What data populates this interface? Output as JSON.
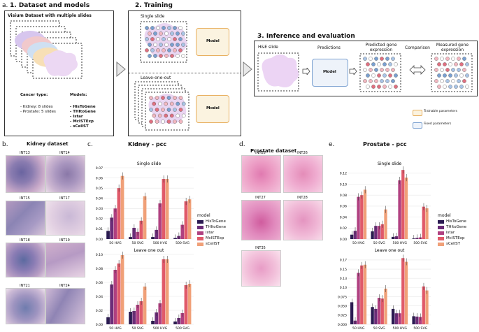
{
  "section_a": {
    "letter": "a.",
    "title": "1. Dataset and models",
    "box_title": "Visium Dataset with multiple slides",
    "cancer_type_label": "Cancer type:",
    "cancer_types": [
      "- Kidney: 8 slides",
      "- Prostate: 5 slides"
    ],
    "models_label": "Models:",
    "models": [
      "- HisToGene",
      "- THItoGene",
      "- Istar",
      "- McISTExp",
      "- sCellST"
    ]
  },
  "section_2": {
    "title": "2. Training",
    "single_slide": "Single slide",
    "leave_one_out": "Leave-one-out",
    "model_label_1": "Model",
    "model_label_2": "Model"
  },
  "section_3": {
    "title": "3. Inference and evaluation",
    "he_slide": "H&E slide",
    "predictions": "Predictions",
    "predicted_expr": "Predicted gene expression",
    "comparison": "Comparison",
    "measured_expr": "Measured gene expression",
    "model_label": "Model",
    "legend_trainable": "Trainable parameters",
    "legend_fixed": "Fixed parameters",
    "color_trainable": "#e8b060",
    "color_fixed": "#7aa0d0"
  },
  "section_b": {
    "letter": "b.",
    "title": "Kidney dataset",
    "slides": [
      "INT13",
      "INT14",
      "INT15",
      "INT17",
      "INT18",
      "INT19",
      "INT21",
      "INT24"
    ]
  },
  "section_d": {
    "letter": "d.",
    "title": "Prostate dataset",
    "slides": [
      "INT25",
      "INT26",
      "INT27",
      "INT28",
      "INT35"
    ]
  },
  "section_c": {
    "letter": "c.",
    "title": "Kidney - pcc"
  },
  "section_e": {
    "letter": "e.",
    "title": "Prostate - pcc"
  },
  "chart_data": [
    {
      "id": "kidney-single",
      "type": "bar",
      "title": "Single slide",
      "categories": [
        "50 HVG",
        "50 SVG",
        "500 HVG",
        "500 SVG"
      ],
      "ylim": [
        0,
        0.07
      ],
      "yticks": [
        0,
        0.01,
        0.02,
        0.03,
        0.04,
        0.05,
        0.06,
        0.07
      ],
      "series": [
        {
          "name": "HisToGene",
          "values": [
            0.008,
            0.002,
            0.002,
            0.001
          ]
        },
        {
          "name": "THItoGene",
          "values": [
            0.021,
            0.011,
            0.009,
            0.003
          ]
        },
        {
          "name": "istar",
          "values": [
            0.03,
            0.007,
            0.035,
            0.014
          ]
        },
        {
          "name": "McISTExp",
          "values": [
            0.05,
            0.018,
            0.059,
            0.037
          ]
        },
        {
          "name": "sCellST",
          "values": [
            0.062,
            0.042,
            0.059,
            0.039
          ]
        }
      ]
    },
    {
      "id": "kidney-loo",
      "type": "bar",
      "title": "Leave one out",
      "categories": [
        "50 HVG",
        "50 SVG",
        "500 HVG",
        "500 SVG"
      ],
      "ylim": [
        0,
        0.1
      ],
      "yticks": [
        0,
        0.02,
        0.04,
        0.06,
        0.08,
        0.1
      ],
      "series": [
        {
          "name": "HisToGene",
          "values": [
            0.01,
            0.018,
            0.005,
            0.004
          ]
        },
        {
          "name": "THItoGene",
          "values": [
            0.057,
            0.019,
            0.017,
            0.009
          ]
        },
        {
          "name": "istar",
          "values": [
            0.078,
            0.028,
            0.03,
            0.016
          ]
        },
        {
          "name": "McISTExp",
          "values": [
            0.087,
            0.033,
            0.093,
            0.056
          ]
        },
        {
          "name": "sCellST",
          "values": [
            0.099,
            0.054,
            0.093,
            0.058
          ]
        }
      ]
    },
    {
      "id": "prostate-single",
      "type": "bar",
      "title": "Single slide",
      "categories": [
        "50 HVG",
        "50 SVG",
        "500 HVG",
        "500 SVG"
      ],
      "ylim": [
        0,
        0.13
      ],
      "yticks": [
        0,
        0.02,
        0.04,
        0.06,
        0.08,
        0.1,
        0.12
      ],
      "series": [
        {
          "name": "HisToGene",
          "values": [
            0.008,
            0.014,
            0.004,
            0.001
          ]
        },
        {
          "name": "THItoGene",
          "values": [
            0.015,
            0.024,
            0.005,
            0.002
          ]
        },
        {
          "name": "istar",
          "values": [
            0.077,
            0.024,
            0.107,
            0.003
          ]
        },
        {
          "name": "McISTExp",
          "values": [
            0.08,
            0.027,
            0.126,
            0.059
          ]
        },
        {
          "name": "sCellST",
          "values": [
            0.09,
            0.054,
            0.112,
            0.056
          ]
        }
      ]
    },
    {
      "id": "prostate-loo",
      "type": "bar",
      "title": "Leave one out",
      "categories": [
        "50 HVG",
        "50 SVG",
        "500 HVG",
        "500 SVG"
      ],
      "ylim": [
        0,
        0.19
      ],
      "yticks": [
        0,
        0.025,
        0.05,
        0.075,
        0.1,
        0.125,
        0.15,
        0.175
      ],
      "series": [
        {
          "name": "HisToGene",
          "values": [
            0.06,
            0.047,
            0.042,
            0.022
          ]
        },
        {
          "name": "THItoGene",
          "values": [
            0.01,
            0.042,
            0.03,
            0.021
          ]
        },
        {
          "name": "istar",
          "values": [
            0.14,
            0.072,
            0.03,
            0.02
          ]
        },
        {
          "name": "McISTExp",
          "values": [
            0.16,
            0.07,
            0.18,
            0.103
          ]
        },
        {
          "name": "sCellST",
          "values": [
            0.162,
            0.097,
            0.17,
            0.092
          ]
        }
      ]
    }
  ],
  "legend": {
    "title": "model",
    "items": [
      "HisToGene",
      "THItoGene",
      "istar",
      "McISTExp",
      "sCellST"
    ],
    "colors": [
      "#2a1a52",
      "#6b2d78",
      "#b04080",
      "#e05a6a",
      "#f0a078"
    ]
  }
}
